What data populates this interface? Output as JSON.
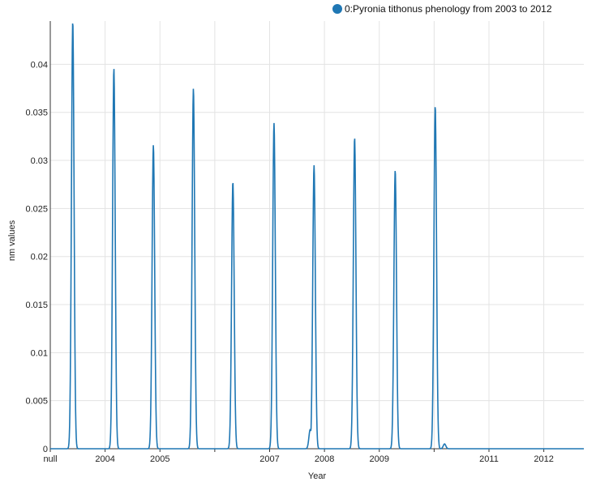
{
  "chart_data": {
    "type": "line",
    "xlabel": "Year",
    "ylabel": "nm values",
    "ylim": [
      0,
      0.0445
    ],
    "xlim": [
      2003.0,
      2012.73
    ],
    "yticks": [
      0,
      0.005,
      0.01,
      0.015,
      0.02,
      0.025,
      0.03,
      0.035,
      0.04
    ],
    "ytick_labels": [
      "0",
      "0.005",
      "0.01",
      "0.015",
      "0.02",
      "0.025",
      "0.03",
      "0.035",
      "0.04"
    ],
    "xticks": [
      2003.0,
      2004.0,
      2005.0,
      2006.0,
      2007.0,
      2008.0,
      2009.0,
      2010.0,
      2011.0,
      2012.0
    ],
    "xtick_labels": [
      "null",
      "2004",
      "2005",
      "",
      "2007",
      "2008",
      "2009",
      "",
      "2011",
      "2012"
    ],
    "grid": true,
    "legend_position": "top-right",
    "series": [
      {
        "name": "0:Pyronia tithonus phenology from 2003 to 2012",
        "color": "#1f77b4",
        "peaks": [
          {
            "x": 2003.41,
            "y": 0.0445
          },
          {
            "x": 2004.16,
            "y": 0.0396
          },
          {
            "x": 2004.88,
            "y": 0.0316
          },
          {
            "x": 2005.02,
            "y": 0.0
          },
          {
            "x": 2005.61,
            "y": 0.0375
          },
          {
            "x": 2006.33,
            "y": 0.0278
          },
          {
            "x": 2007.08,
            "y": 0.0339
          },
          {
            "x": 2007.74,
            "y": 0.002
          },
          {
            "x": 2007.81,
            "y": 0.0295
          },
          {
            "x": 2008.55,
            "y": 0.0324
          },
          {
            "x": 2009.29,
            "y": 0.029
          },
          {
            "x": 2010.02,
            "y": 0.0357
          },
          {
            "x": 2010.19,
            "y": 0.0005
          }
        ]
      }
    ]
  }
}
